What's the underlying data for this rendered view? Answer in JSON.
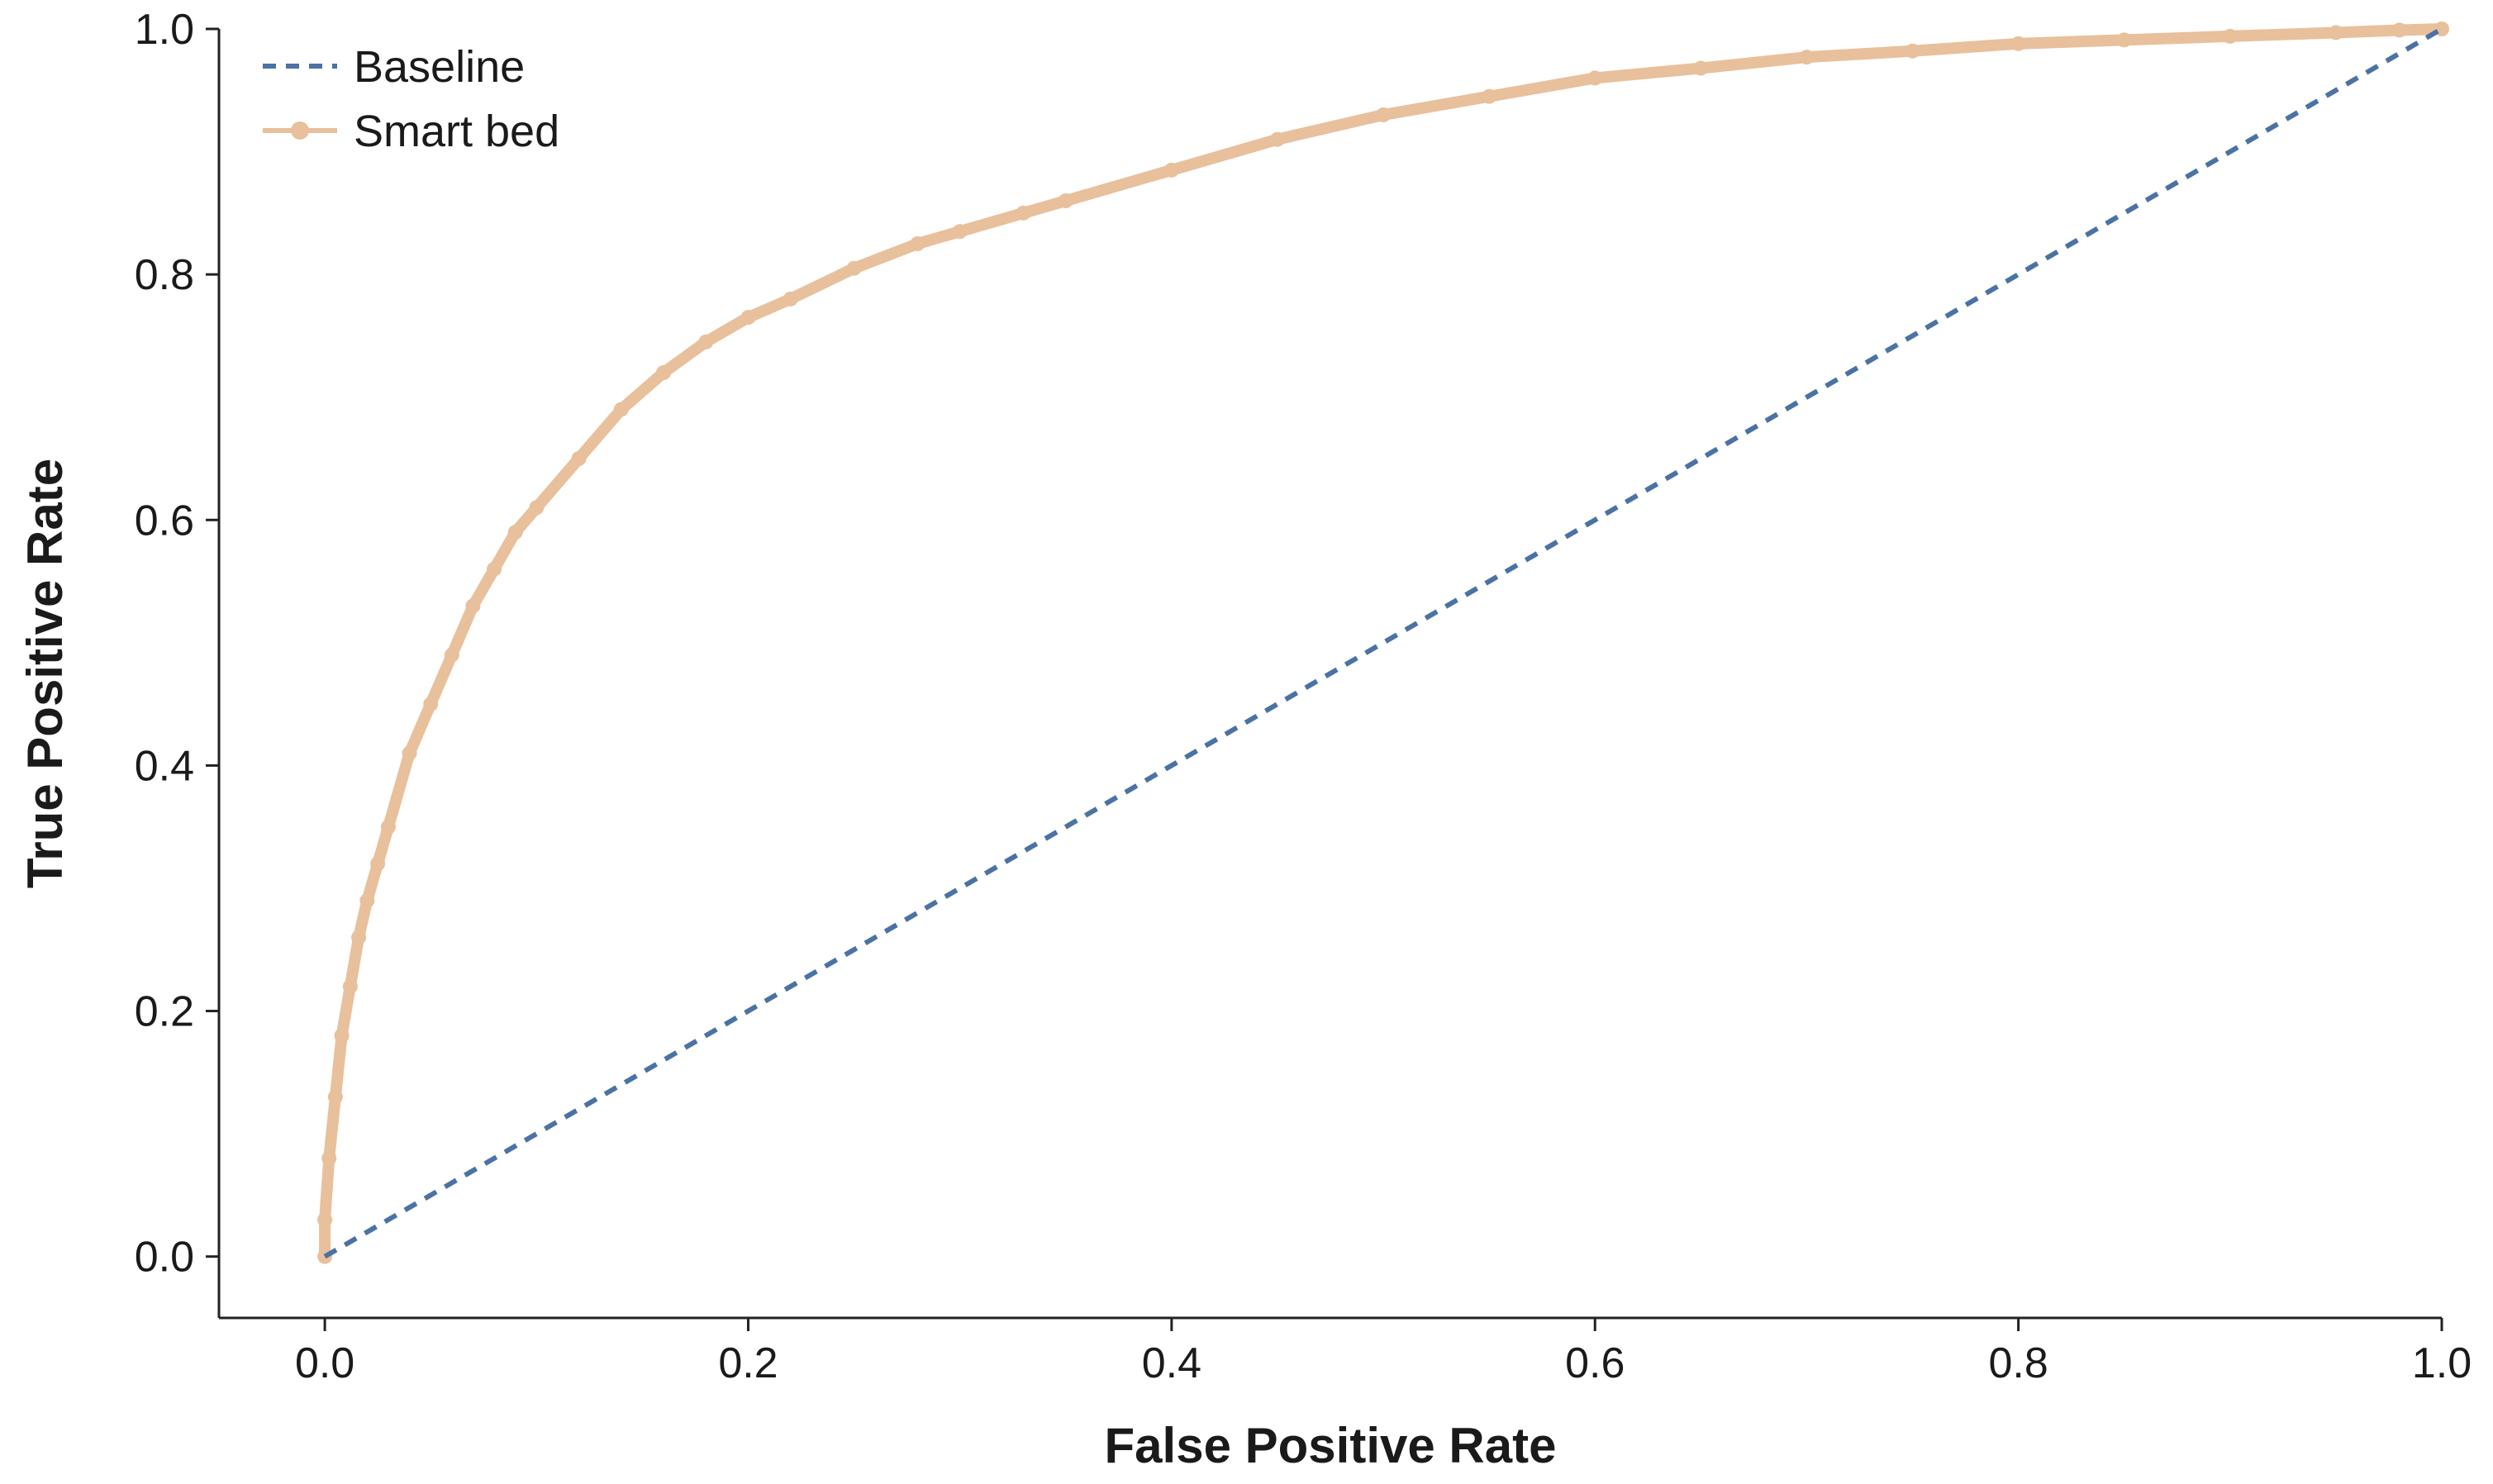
{
  "chart_data": {
    "type": "line",
    "title": "",
    "xlabel": "False Positive Rate",
    "ylabel": "True Positive Rate",
    "xlim": [
      -0.05,
      1.0
    ],
    "ylim": [
      -0.05,
      1.0
    ],
    "x_ticks": [
      0.0,
      0.2,
      0.4,
      0.6,
      0.8,
      1.0
    ],
    "x_tick_labels": [
      "0.0",
      "0.2",
      "0.4",
      "0.6",
      "0.8",
      "1.0"
    ],
    "y_ticks": [
      0.0,
      0.2,
      0.4,
      0.6,
      0.8,
      1.0
    ],
    "y_tick_labels": [
      "0.0",
      "0.2",
      "0.4",
      "0.6",
      "0.8",
      "1.0"
    ],
    "grid": false,
    "legend_position": "top-left",
    "series": [
      {
        "name": "Baseline",
        "style": "dashed",
        "color": "#4A72A4",
        "x": [
          0.0,
          1.0
        ],
        "y": [
          0.0,
          1.0
        ]
      },
      {
        "name": "Smart bed",
        "style": "solid-markers",
        "color": "#E8C09C",
        "x": [
          0.0,
          0.0,
          0.002,
          0.005,
          0.008,
          0.012,
          0.016,
          0.02,
          0.025,
          0.03,
          0.04,
          0.05,
          0.06,
          0.07,
          0.08,
          0.09,
          0.1,
          0.12,
          0.14,
          0.16,
          0.18,
          0.2,
          0.22,
          0.25,
          0.28,
          0.3,
          0.33,
          0.35,
          0.4,
          0.45,
          0.5,
          0.55,
          0.6,
          0.65,
          0.7,
          0.75,
          0.8,
          0.85,
          0.9,
          0.95,
          0.98,
          1.0
        ],
        "y": [
          0.0,
          0.03,
          0.08,
          0.13,
          0.18,
          0.22,
          0.26,
          0.29,
          0.32,
          0.35,
          0.41,
          0.45,
          0.49,
          0.53,
          0.56,
          0.59,
          0.61,
          0.65,
          0.69,
          0.72,
          0.745,
          0.765,
          0.78,
          0.805,
          0.825,
          0.835,
          0.85,
          0.86,
          0.885,
          0.91,
          0.93,
          0.945,
          0.96,
          0.968,
          0.977,
          0.982,
          0.988,
          0.991,
          0.994,
          0.997,
          0.999,
          1.0
        ]
      }
    ]
  }
}
